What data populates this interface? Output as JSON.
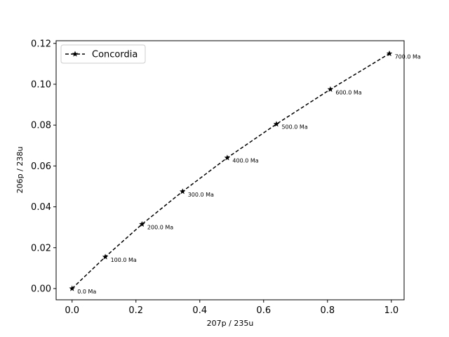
{
  "chart_data": {
    "type": "line",
    "title": "",
    "xlabel": "207p / 235u",
    "ylabel": "206p / 238u",
    "xlim": [
      -0.05,
      1.04
    ],
    "ylim": [
      -0.0055,
      0.1213
    ],
    "x_ticks": [
      "0.0",
      "0.2",
      "0.4",
      "0.6",
      "0.8",
      "1.0"
    ],
    "y_ticks": [
      "0.00",
      "0.02",
      "0.04",
      "0.06",
      "0.08",
      "0.10",
      "0.12"
    ],
    "grid": false,
    "legend_position": "upper-left",
    "series": [
      {
        "name": "Concordia",
        "color": "#000000",
        "line_style": "dashed",
        "marker": "star",
        "x": [
          0.0,
          0.104,
          0.219,
          0.346,
          0.486,
          0.64,
          0.809,
          0.994
        ],
        "y": [
          0.0,
          0.0155,
          0.0315,
          0.0475,
          0.064,
          0.0805,
          0.0975,
          0.115
        ],
        "point_labels": [
          "0.0 Ma",
          "100.0 Ma",
          "200.0 Ma",
          "300.0 Ma",
          "400.0 Ma",
          "500.0 Ma",
          "600.0 Ma",
          "700.0 Ma"
        ]
      }
    ]
  }
}
